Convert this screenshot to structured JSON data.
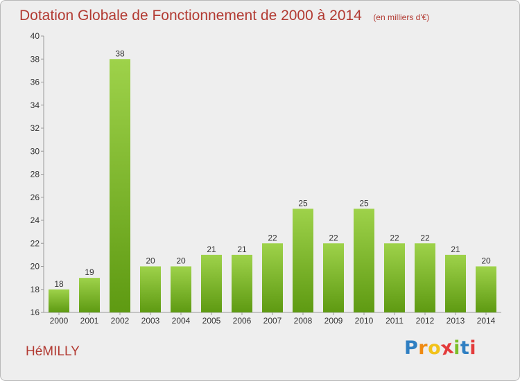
{
  "header": {
    "title": "Dotation Globale de Fonctionnement de 2000 à 2014",
    "subtitle": "(en milliers d'€)"
  },
  "footer": {
    "commune": "HéMILLY",
    "logo_letters": [
      "P",
      "r",
      "o",
      "x",
      "i",
      "t",
      "i"
    ]
  },
  "colors": {
    "title": "#b23a32",
    "bar_top": "#9ed24a",
    "bar_bottom": "#5e9a12",
    "logo": [
      "#2f7fc2",
      "#ef8a12",
      "#f2c21a",
      "#e33b3b",
      "#7cbf2a",
      "#2f7fc2",
      "#e33b3b"
    ]
  },
  "chart_data": {
    "type": "bar",
    "title": "Dotation Globale de Fonctionnement de 2000 à 2014",
    "subtitle": "(en milliers d'€)",
    "categories": [
      "2000",
      "2001",
      "2002",
      "2003",
      "2004",
      "2005",
      "2006",
      "2007",
      "2008",
      "2009",
      "2010",
      "2011",
      "2012",
      "2013",
      "2014"
    ],
    "values": [
      18,
      19,
      38,
      20,
      20,
      21,
      21,
      22,
      25,
      22,
      25,
      22,
      22,
      21,
      20
    ],
    "ylim": [
      16,
      40
    ],
    "yticks": [
      16,
      18,
      20,
      22,
      24,
      26,
      28,
      30,
      32,
      34,
      36,
      38,
      40
    ],
    "grid": false,
    "legend": "none"
  }
}
